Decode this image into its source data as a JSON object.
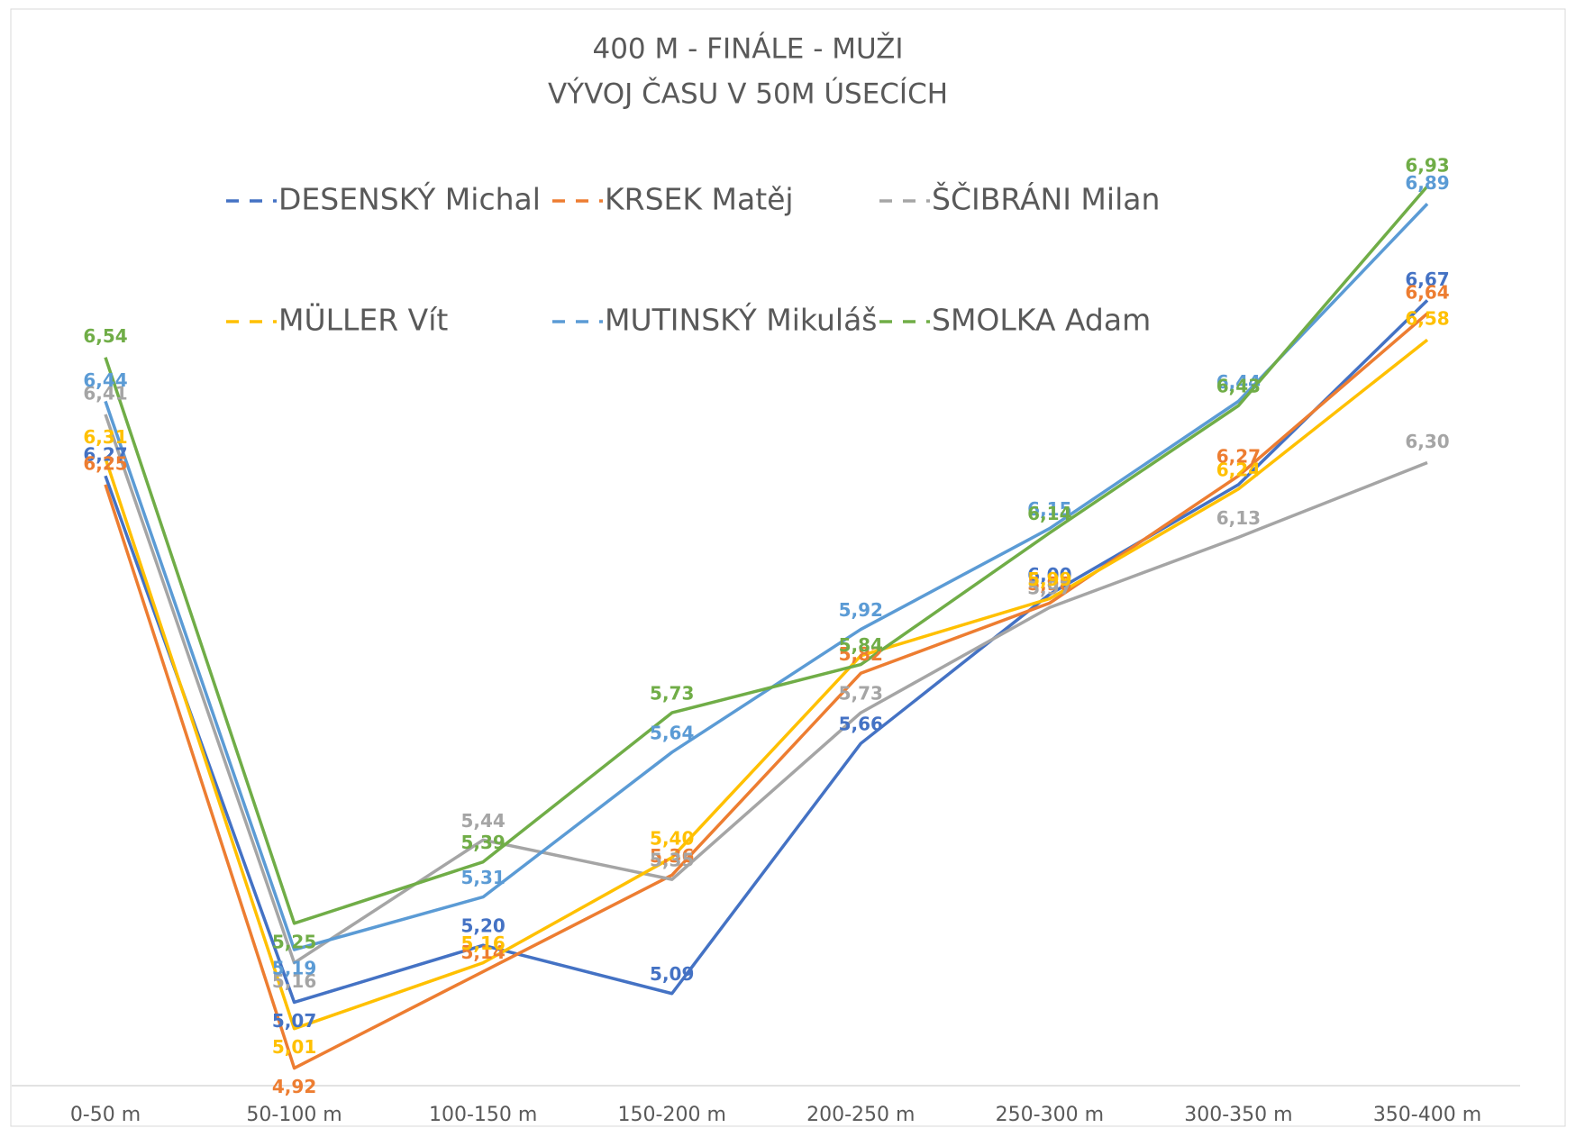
{
  "chart_data": {
    "type": "line",
    "title": "400 M - FINÁLE - MUŽI",
    "subtitle": "VÝVOJ ČASU V 50M ÚSECÍCH",
    "categories": [
      "0-50 m",
      "50-100 m",
      "100-150 m",
      "150-200 m",
      "200-250 m",
      "250-300 m",
      "300-350 m",
      "350-400 m"
    ],
    "ylim": [
      4.88,
      7.1
    ],
    "series": [
      {
        "name": "DESENSKÝ Michal",
        "color": "#4472c4",
        "values": [
          6.27,
          5.07,
          5.2,
          5.09,
          5.66,
          6.0,
          6.25,
          6.67
        ],
        "value_labels": [
          "6,27",
          "5,07",
          "5,20",
          "5,09",
          "5,66",
          "6,00",
          null,
          "6,67"
        ]
      },
      {
        "name": "KRSEK Matěj",
        "color": "#ed7d31",
        "values": [
          6.25,
          4.92,
          5.14,
          5.36,
          5.82,
          5.98,
          6.27,
          6.64
        ],
        "value_labels": [
          "6,25",
          "4,92",
          "5,14",
          "5,36",
          "5,82",
          "5,98",
          "6,27",
          "6,64"
        ]
      },
      {
        "name": "ŠČIBRÁNI Milan",
        "color": "#a5a5a5",
        "values": [
          6.41,
          5.16,
          5.44,
          5.35,
          5.73,
          5.97,
          6.13,
          6.3
        ],
        "value_labels": [
          "6,41",
          "5,16",
          "5,44",
          "5,35",
          "5,73",
          "5,97",
          "6,13",
          "6,30"
        ]
      },
      {
        "name": "MÜLLER Vít",
        "color": "#ffc000",
        "values": [
          6.31,
          5.01,
          5.16,
          5.4,
          5.86,
          5.99,
          6.24,
          6.58
        ],
        "value_labels": [
          "6,31",
          "5,01",
          "5,16",
          "5,40",
          null,
          "5,99",
          "6,24",
          "6,58"
        ]
      },
      {
        "name": "MUTINSKÝ Mikuláš",
        "color": "#5b9bd5",
        "values": [
          6.44,
          5.19,
          5.31,
          5.64,
          5.92,
          6.15,
          6.44,
          6.89
        ],
        "value_labels": [
          "6,44",
          "5,19",
          "5,31",
          "5,64",
          "5,92",
          "6,15",
          "6,44",
          "6,89"
        ]
      },
      {
        "name": "SMOLKA Adam",
        "color": "#70ad47",
        "values": [
          6.54,
          5.25,
          5.39,
          5.73,
          5.84,
          6.14,
          6.43,
          6.93
        ],
        "value_labels": [
          "6,54",
          "5,25",
          "5,39",
          "5,73",
          "5,84",
          "6,14",
          "6,43",
          "6,93"
        ]
      }
    ]
  }
}
